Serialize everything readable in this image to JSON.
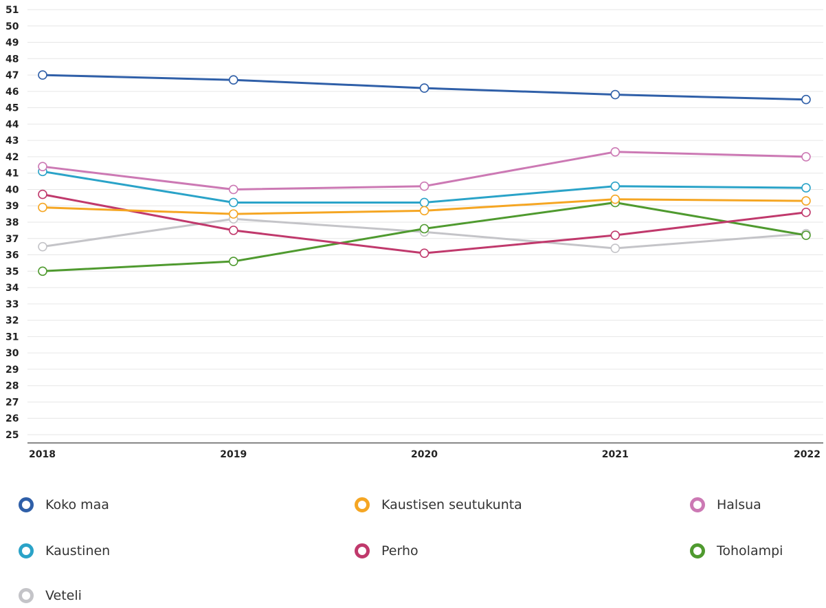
{
  "chart_data": {
    "type": "line",
    "categories": [
      "2018",
      "2019",
      "2020",
      "2021",
      "2022"
    ],
    "ylim": [
      25,
      51
    ],
    "yticks": [
      25,
      26,
      27,
      28,
      29,
      30,
      31,
      32,
      33,
      34,
      35,
      36,
      37,
      38,
      39,
      40,
      41,
      42,
      43,
      44,
      45,
      46,
      47,
      48,
      49,
      50,
      51
    ],
    "grid": true,
    "legend_position": "bottom",
    "series": [
      {
        "name": "Koko maa",
        "color": "#2f5fa8",
        "values": [
          47.0,
          46.7,
          46.2,
          45.8,
          45.5
        ]
      },
      {
        "name": "Kaustisen seutukunta",
        "color": "#f5a623",
        "values": [
          38.9,
          38.5,
          38.7,
          39.4,
          39.3
        ]
      },
      {
        "name": "Halsua",
        "color": "#cc79b4",
        "values": [
          41.4,
          40.0,
          40.2,
          42.3,
          42.0
        ]
      },
      {
        "name": "Kaustinen",
        "color": "#2aa3c8",
        "values": [
          41.1,
          39.2,
          39.2,
          40.2,
          40.1
        ]
      },
      {
        "name": "Perho",
        "color": "#c0396c",
        "values": [
          39.7,
          37.5,
          36.1,
          37.2,
          38.6
        ]
      },
      {
        "name": "Toholampi",
        "color": "#4f9a2f",
        "values": [
          35.0,
          35.6,
          37.6,
          39.2,
          37.2
        ]
      },
      {
        "name": "Veteli",
        "color": "#c4c4c8",
        "values": [
          36.5,
          38.2,
          37.4,
          36.4,
          37.3
        ]
      }
    ]
  }
}
